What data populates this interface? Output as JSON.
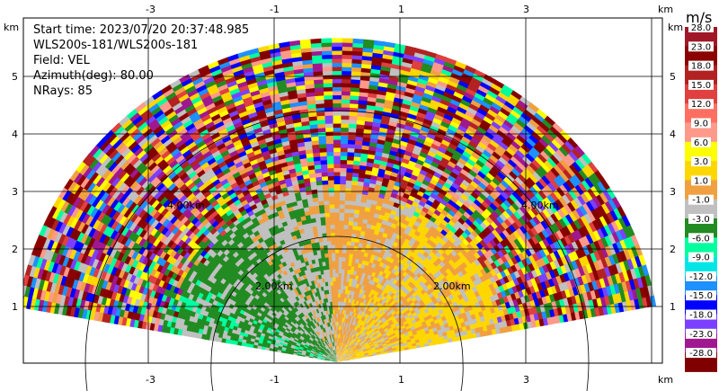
{
  "info": {
    "start_time": "Start time: 2023/07/20 20:37:48.985",
    "instrument": "WLS200s-181/WLS200s-181",
    "field": "Field: VEL",
    "azimuth": "Azimuth(deg): 80.00",
    "nrays": "NRays: 85"
  },
  "axes": {
    "x_unit": "km",
    "y_unit": "km",
    "x_ticks": [
      "-3",
      "-1",
      "1",
      "3"
    ],
    "y_ticks": [
      "1",
      "2",
      "3",
      "4",
      "5"
    ]
  },
  "range_rings": {
    "labels": [
      "2.00km",
      "2.00km",
      "4.00km",
      "4.00km"
    ]
  },
  "colorbar": {
    "units": "m/s",
    "labels": [
      "28.0",
      "23.0",
      "18.0",
      "15.0",
      "12.0",
      "9.0",
      "6.0",
      "3.0",
      "1.0",
      "-1.0",
      "-3.0",
      "-6.0",
      "-9.0",
      "-12.0",
      "-15.0",
      "-18.0",
      "-23.0",
      "-28.0"
    ],
    "colors": [
      "#a01828",
      "#8b0000",
      "#b22222",
      "#e04040",
      "#ff6f61",
      "#ff9a8a",
      "#ffff00",
      "#ffd700",
      "#f0a040",
      "#c0c0c0",
      "#228b22",
      "#00ff9f",
      "#00e6e6",
      "#1e90ff",
      "#0000ff",
      "#7b40ff",
      "#a01890",
      "#800000"
    ]
  },
  "palette": {
    "near_field": [
      "#c0c0c0",
      "#228b22",
      "#f0a040",
      "#ffd700"
    ],
    "noise": [
      "#8b0000",
      "#b22222",
      "#a01890",
      "#7b40ff",
      "#0000ff",
      "#1e90ff",
      "#00ff9f",
      "#228b22",
      "#c0c0c0",
      "#f0a040",
      "#ffd700",
      "#ffff00",
      "#ff9a8a",
      "#e04040",
      "#800000"
    ]
  }
}
